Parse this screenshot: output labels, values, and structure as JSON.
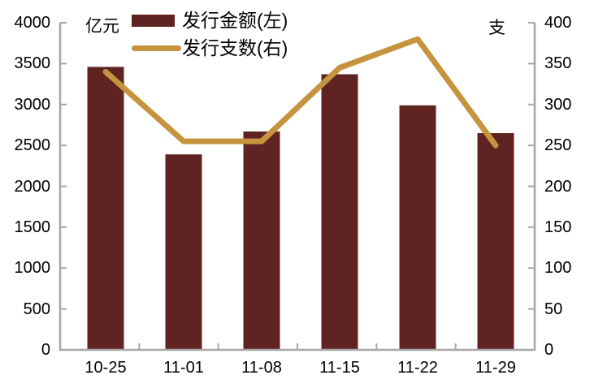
{
  "chart_data": {
    "type": "combo",
    "subtypes": [
      "bar",
      "line"
    ],
    "categories": [
      "10-25",
      "11-01",
      "11-08",
      "11-15",
      "11-22",
      "11-29"
    ],
    "series": [
      {
        "name": "发行金额(左)",
        "type": "bar",
        "axis": "left",
        "values": [
          3460,
          2390,
          2670,
          3370,
          2990,
          2650
        ]
      },
      {
        "name": "发行支数(右)",
        "type": "line",
        "axis": "right",
        "values": [
          340,
          255,
          255,
          345,
          380,
          250
        ]
      }
    ],
    "left_axis": {
      "unit_label": "亿元",
      "min": 0,
      "max": 4000,
      "step": 500,
      "ticks": [
        "4000",
        "3500",
        "3000",
        "2500",
        "2000",
        "1500",
        "1000",
        "500",
        "0"
      ]
    },
    "right_axis": {
      "unit_label": "支",
      "min": 0,
      "max": 400,
      "step": 50,
      "ticks": [
        "400",
        "350",
        "300",
        "250",
        "200",
        "150",
        "100",
        "50",
        "0"
      ]
    },
    "title": "",
    "grid": false,
    "legend_position": "top-center"
  },
  "legend": {
    "items": [
      {
        "label": "发行金额(左)",
        "swatch": "bar"
      },
      {
        "label": "发行支数(右)",
        "swatch": "line"
      }
    ]
  },
  "colors": {
    "bar": "#5F2422",
    "line": "#C6943E",
    "axis": "#A6A6A6",
    "text": "#000000",
    "background": "#FFFFFF"
  }
}
